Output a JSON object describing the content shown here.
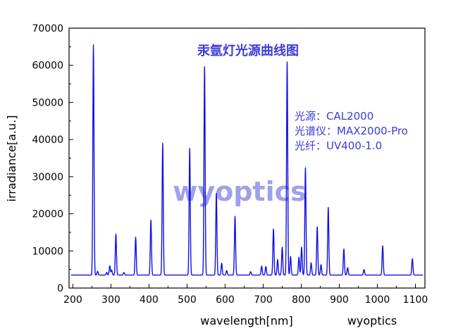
{
  "chart_data": {
    "type": "line",
    "title": "汞氩灯光源曲线图",
    "xlabel": "wavelength[nm]",
    "ylabel": "irradiance[a.u.]",
    "xlim": [
      190,
      1125
    ],
    "ylim": [
      0,
      70000
    ],
    "x_ticks": [
      200,
      300,
      400,
      500,
      600,
      700,
      800,
      900,
      1000,
      1100
    ],
    "y_ticks": [
      0,
      10000,
      20000,
      30000,
      40000,
      50000,
      60000,
      70000
    ],
    "grid": false,
    "baseline": 3500,
    "series": [
      {
        "color": "#1010e0",
        "peaks": [
          {
            "x": 254,
            "y": 65500
          },
          {
            "x": 265,
            "y": 4500
          },
          {
            "x": 289,
            "y": 4200
          },
          {
            "x": 297,
            "y": 6000
          },
          {
            "x": 302,
            "y": 4800
          },
          {
            "x": 313,
            "y": 14500
          },
          {
            "x": 334,
            "y": 4200
          },
          {
            "x": 365,
            "y": 13700
          },
          {
            "x": 405,
            "y": 18300
          },
          {
            "x": 436,
            "y": 39000
          },
          {
            "x": 507,
            "y": 37600
          },
          {
            "x": 546,
            "y": 59600
          },
          {
            "x": 577,
            "y": 25500
          },
          {
            "x": 591,
            "y": 6700
          },
          {
            "x": 604,
            "y": 4700
          },
          {
            "x": 626,
            "y": 19300
          },
          {
            "x": 667,
            "y": 4400
          },
          {
            "x": 696,
            "y": 5900
          },
          {
            "x": 707,
            "y": 5800
          },
          {
            "x": 727,
            "y": 15900
          },
          {
            "x": 738,
            "y": 7700
          },
          {
            "x": 750,
            "y": 11000
          },
          {
            "x": 763,
            "y": 60900
          },
          {
            "x": 772,
            "y": 8500
          },
          {
            "x": 794,
            "y": 8300
          },
          {
            "x": 801,
            "y": 11000
          },
          {
            "x": 811,
            "y": 32400
          },
          {
            "x": 826,
            "y": 6800
          },
          {
            "x": 842,
            "y": 16500
          },
          {
            "x": 852,
            "y": 6300
          },
          {
            "x": 871,
            "y": 21700
          },
          {
            "x": 912,
            "y": 10500
          },
          {
            "x": 922,
            "y": 5500
          },
          {
            "x": 965,
            "y": 5000
          },
          {
            "x": 1014,
            "y": 11400
          },
          {
            "x": 1092,
            "y": 7900
          }
        ]
      }
    ]
  },
  "info": {
    "line1": "光源：CAL2000",
    "line2": "光谱仪：MAX2000-Pro",
    "line3": "光纤：UV400-1.0"
  },
  "watermark": "wyoptics",
  "credit": "wyoptics",
  "colors": {
    "series": "#1010e0",
    "title": "#3b3bd9",
    "info": "#3b3bd9",
    "watermark": "#8f8fea",
    "axis": "#000000"
  }
}
